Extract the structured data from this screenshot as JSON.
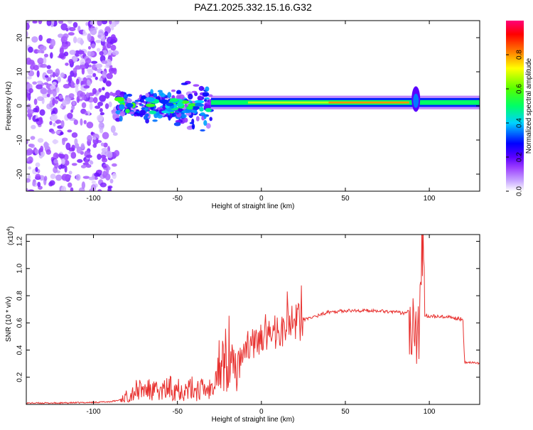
{
  "title": "PAZ1.2025.332.15.16.G32",
  "chart_data": [
    {
      "type": "heatmap",
      "name": "spectrogram",
      "xlabel": "Height of straight line (km)",
      "ylabel": "Frequency (Hz)",
      "xlim": [
        -140,
        130
      ],
      "ylim": [
        -25,
        25
      ],
      "xticks": [
        -100,
        -50,
        0,
        50,
        100
      ],
      "yticks": [
        -20,
        -10,
        0,
        10,
        20
      ],
      "colorbar": {
        "label": "Normalized spectral amplitude",
        "range": [
          0,
          1
        ],
        "ticks": [
          0.0,
          0.2,
          0.4,
          0.6,
          0.8
        ],
        "tick_labels": [
          "0.0",
          "0.2",
          "0.4",
          "0.6",
          "0.8"
        ],
        "colors": [
          "#ffffff",
          "#c9a8ff",
          "#9a3cff",
          "#5a00ff",
          "#0000ff",
          "#00d2ff",
          "#00ff66",
          "#55ff00",
          "#ffff00",
          "#ff7a00",
          "#ff0000",
          "#ff0078"
        ]
      },
      "features": [
        {
          "region": "noise",
          "height_km": [
            -140,
            -86
          ],
          "freq_hz": [
            -25,
            25
          ],
          "amplitude": 0.1
        },
        {
          "region": "scattered signal",
          "height_km": [
            -86,
            -30
          ],
          "freq_hz": [
            -8,
            8
          ],
          "amplitude": 0.35
        },
        {
          "region": "carrier",
          "height_km": [
            -30,
            130
          ],
          "freq_hz": [
            0,
            2
          ],
          "amplitude": 0.9
        },
        {
          "region": "multipath",
          "height_km": [
            88,
            96
          ],
          "freq_hz": [
            -3,
            8
          ],
          "amplitude": 0.5
        }
      ]
    },
    {
      "type": "line",
      "name": "snr",
      "xlabel": "Height of straight line (km)",
      "ylabel": "SNR (10 * v/v)",
      "scale_label": "(x10",
      "scale_exponent": "4",
      "scale_close": ")",
      "xlim": [
        -140,
        130
      ],
      "ylim": [
        0,
        1.25
      ],
      "xticks": [
        -100,
        -50,
        0,
        50,
        100
      ],
      "yticks": [
        0.2,
        0.4,
        0.6,
        0.8,
        1.0,
        1.2
      ],
      "ytick_labels": [
        "0.2",
        "0.4",
        "0.6",
        "0.8",
        "1.0",
        "1.2"
      ],
      "color": "#e8312f",
      "x": [
        -140,
        -120,
        -100,
        -90,
        -85,
        -80,
        -75,
        -70,
        -65,
        -60,
        -55,
        -50,
        -45,
        -40,
        -35,
        -30,
        -27,
        -25,
        -20,
        -15,
        -12,
        -10,
        -5,
        0,
        5,
        10,
        15,
        20,
        25,
        30,
        35,
        40,
        50,
        60,
        70,
        80,
        85,
        88,
        90,
        92,
        93,
        95,
        96,
        97,
        100,
        110,
        120,
        121,
        125,
        130
      ],
      "y": [
        0.01,
        0.01,
        0.015,
        0.02,
        0.03,
        0.06,
        0.1,
        0.11,
        0.1,
        0.09,
        0.12,
        0.13,
        0.1,
        0.12,
        0.11,
        0.12,
        0.2,
        0.3,
        0.26,
        0.25,
        0.3,
        0.4,
        0.45,
        0.48,
        0.5,
        0.55,
        0.55,
        0.6,
        0.62,
        0.64,
        0.66,
        0.68,
        0.69,
        0.69,
        0.69,
        0.68,
        0.67,
        0.7,
        0.55,
        0.85,
        0.3,
        0.8,
        1.22,
        0.66,
        0.65,
        0.64,
        0.63,
        0.31,
        0.31,
        0.3
      ]
    }
  ]
}
